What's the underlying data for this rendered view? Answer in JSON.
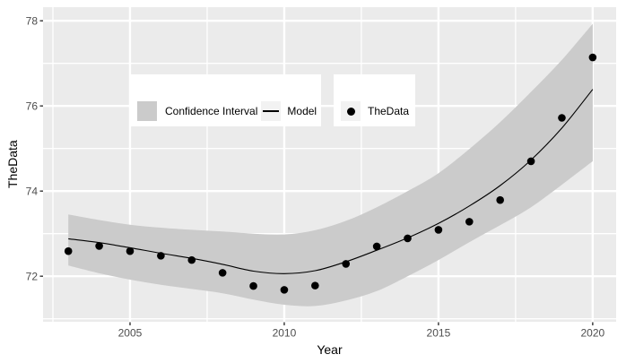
{
  "colors": {
    "panel_bg": "#EBEBEB",
    "grid_major": "#FFFFFF",
    "grid_minor": "#FFFFFF",
    "ribbon": "#CBCBCB",
    "model_line": "#000000",
    "point": "#000000",
    "legend_bg": "#FFFFFF",
    "legend_key_bg": "#F2F2F2",
    "axis_tick_text": "#4D4D4D",
    "axis_title_text": "#000000",
    "tick_mark": "#333333"
  },
  "legend": {
    "items": [
      {
        "label": "Confidence Interval",
        "key": "filled-square-swatch"
      },
      {
        "label": "Model",
        "key": "line-swatch"
      },
      {
        "label": "TheData",
        "key": "point-swatch"
      }
    ]
  },
  "chart_data": {
    "type": "scatter",
    "title": "",
    "xlabel": "Year",
    "ylabel": "TheData",
    "x": [
      2003,
      2004,
      2005,
      2006,
      2007,
      2008,
      2009,
      2010,
      2011,
      2012,
      2013,
      2014,
      2015,
      2016,
      2017,
      2018,
      2019,
      2020
    ],
    "series": [
      {
        "name": "TheData",
        "style": "scatter",
        "values": [
          72.59,
          72.71,
          72.59,
          72.48,
          72.38,
          72.08,
          71.77,
          71.68,
          71.78,
          72.29,
          72.7,
          72.89,
          73.09,
          73.28,
          73.79,
          74.7,
          75.72,
          77.14
        ]
      },
      {
        "name": "Model",
        "style": "line",
        "values": [
          72.88,
          72.79,
          72.67,
          72.54,
          72.42,
          72.28,
          72.12,
          72.06,
          72.13,
          72.34,
          72.61,
          72.9,
          73.24,
          73.65,
          74.13,
          74.73,
          75.48,
          76.39
        ]
      },
      {
        "name": "Confidence Interval",
        "style": "ribbon",
        "upper": [
          73.45,
          73.32,
          73.21,
          73.14,
          73.09,
          73.05,
          73.0,
          72.98,
          73.08,
          73.3,
          73.62,
          74.0,
          74.42,
          74.99,
          75.62,
          76.33,
          77.08,
          77.93
        ],
        "lower": [
          72.25,
          72.07,
          71.92,
          71.8,
          71.7,
          71.6,
          71.45,
          71.33,
          71.3,
          71.43,
          71.65,
          72.0,
          72.38,
          72.8,
          73.2,
          73.62,
          74.15,
          74.7
        ]
      }
    ],
    "xlim": [
      2002.18,
      2020.76
    ],
    "ylim": [
      70.93,
      78.32
    ],
    "x_major_ticks": [
      2005,
      2010,
      2015,
      2020
    ],
    "x_minor_ticks": [
      2002.5,
      2007.5,
      2012.5,
      2017.5
    ],
    "y_major_ticks": [
      72,
      74,
      76,
      78
    ],
    "y_minor_ticks": [
      71,
      73,
      75,
      77
    ],
    "x_tick_labels": [
      "2005",
      "2010",
      "2015",
      "2020"
    ],
    "y_tick_labels": [
      "72",
      "74",
      "76",
      "78"
    ],
    "grid": "white major and minor gridlines on gray panel",
    "legend_position": "inside top-left, horizontal"
  }
}
